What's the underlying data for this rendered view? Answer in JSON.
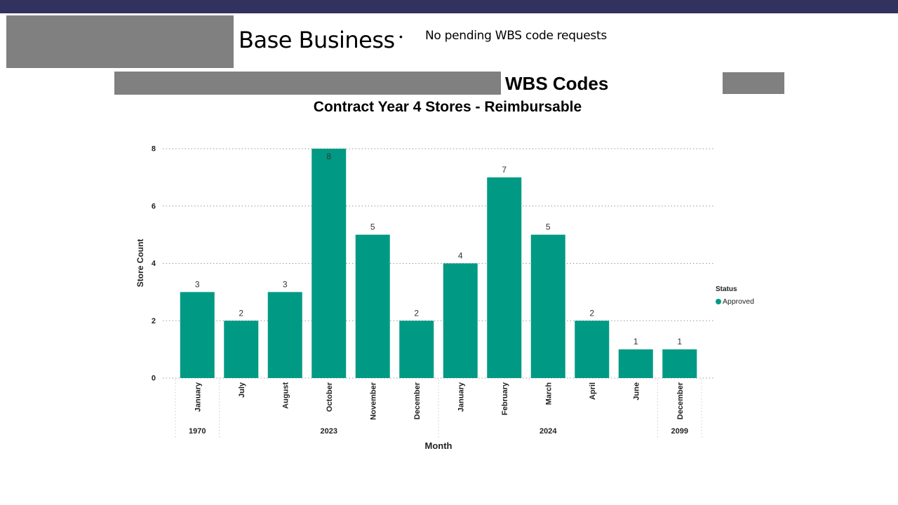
{
  "slide": {
    "heading": "Base Business",
    "bullet_symbol": "•",
    "note": "No pending WBS code requests"
  },
  "colors": {
    "top_bar": "#32325f",
    "redaction": "#808080",
    "bar": "#009a84"
  },
  "chart_data": {
    "type": "bar",
    "title": "WBS Codes",
    "subtitle": "Contract Year 4 Stores - Reimbursable",
    "xlabel": "Month",
    "ylabel": "Store Count",
    "ylim": [
      0,
      8
    ],
    "yticks": [
      0,
      2,
      4,
      6,
      8
    ],
    "grid": true,
    "legend": {
      "title": "Status",
      "placement": "right",
      "entries": [
        "Approved"
      ]
    },
    "categories": [
      "January",
      "July",
      "August",
      "October",
      "November",
      "December",
      "January",
      "February",
      "March",
      "April",
      "June",
      "December"
    ],
    "year_groups": [
      {
        "label": "1970",
        "count": 1
      },
      {
        "label": "2023",
        "count": 5
      },
      {
        "label": "2024",
        "count": 5
      },
      {
        "label": "2099",
        "count": 1
      }
    ],
    "series": [
      {
        "name": "Approved",
        "values": [
          3,
          2,
          3,
          8,
          5,
          2,
          4,
          7,
          5,
          2,
          1,
          1
        ]
      }
    ]
  }
}
